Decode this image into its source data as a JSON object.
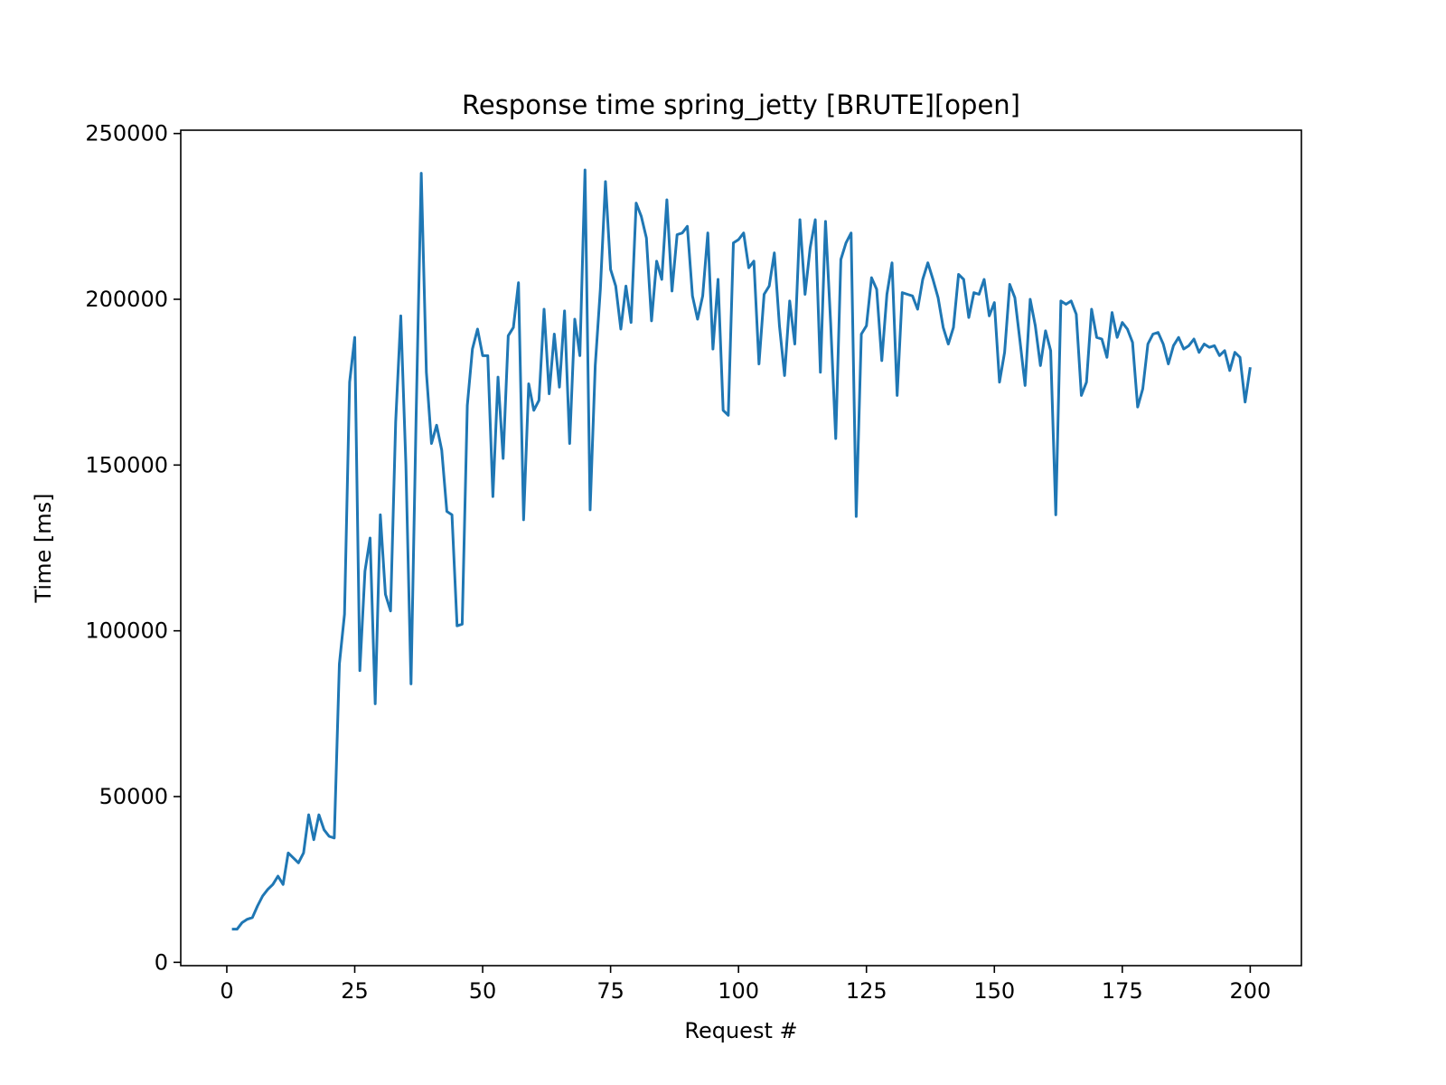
{
  "chart_data": {
    "type": "line",
    "title": "Response time spring_jetty [BRUTE][open]",
    "xlabel": "Request #",
    "ylabel": "Time [ms]",
    "xlim": [
      -9,
      210
    ],
    "ylim": [
      -1000,
      251000
    ],
    "xticks": [
      0,
      25,
      50,
      75,
      100,
      125,
      150,
      175,
      200
    ],
    "yticks": [
      0,
      50000,
      100000,
      150000,
      200000,
      250000
    ],
    "grid": false,
    "legend": false,
    "series": [
      {
        "color": "#1f77b4",
        "x": [
          1,
          2,
          3,
          4,
          5,
          6,
          7,
          8,
          9,
          10,
          11,
          12,
          13,
          14,
          15,
          16,
          17,
          18,
          19,
          20,
          21,
          22,
          23,
          24,
          25,
          26,
          27,
          28,
          29,
          30,
          31,
          32,
          33,
          34,
          35,
          36,
          37,
          38,
          39,
          40,
          41,
          42,
          43,
          44,
          45,
          46,
          47,
          48,
          49,
          50,
          51,
          52,
          53,
          54,
          55,
          56,
          57,
          58,
          59,
          60,
          61,
          62,
          63,
          64,
          65,
          66,
          67,
          68,
          69,
          70,
          71,
          72,
          73,
          74,
          75,
          76,
          77,
          78,
          79,
          80,
          81,
          82,
          83,
          84,
          85,
          86,
          87,
          88,
          89,
          90,
          91,
          92,
          93,
          94,
          95,
          96,
          97,
          98,
          99,
          100,
          101,
          102,
          103,
          104,
          105,
          106,
          107,
          108,
          109,
          110,
          111,
          112,
          113,
          114,
          115,
          116,
          117,
          118,
          119,
          120,
          121,
          122,
          123,
          124,
          125,
          126,
          127,
          128,
          129,
          130,
          131,
          132,
          133,
          134,
          135,
          136,
          137,
          138,
          139,
          140,
          141,
          142,
          143,
          144,
          145,
          146,
          147,
          148,
          149,
          150,
          151,
          152,
          153,
          154,
          155,
          156,
          157,
          158,
          159,
          160,
          161,
          162,
          163,
          164,
          165,
          166,
          167,
          168,
          169,
          170,
          171,
          172,
          173,
          174,
          175,
          176,
          177,
          178,
          179,
          180,
          181,
          182,
          183,
          184,
          185,
          186,
          187,
          188,
          189,
          190,
          191,
          192,
          193,
          194,
          195,
          196,
          197,
          198,
          199,
          200
        ],
        "values": [
          10000,
          10000,
          12000,
          13000,
          13500,
          17000,
          20000,
          22000,
          23500,
          26000,
          23500,
          33000,
          31500,
          30000,
          33000,
          44500,
          37000,
          44500,
          40000,
          38000,
          37500,
          90000,
          105000,
          175000,
          188500,
          88000,
          118000,
          128000,
          78000,
          135000,
          111000,
          106000,
          163000,
          195000,
          150000,
          84000,
          165000,
          238000,
          178000,
          156500,
          162000,
          154500,
          136000,
          135000,
          101500,
          102000,
          168000,
          185000,
          191000,
          183000,
          183000,
          140500,
          176500,
          152000,
          189000,
          191500,
          205000,
          133500,
          174500,
          166500,
          169500,
          197000,
          171500,
          189500,
          173500,
          196500,
          156500,
          194000,
          183000,
          239000,
          136500,
          180000,
          203000,
          235500,
          209000,
          204000,
          191000,
          204000,
          193000,
          229000,
          225000,
          218500,
          193500,
          211500,
          206000,
          230000,
          202500,
          219500,
          220000,
          222000,
          201000,
          194000,
          201000,
          220000,
          185000,
          206000,
          166500,
          165000,
          217000,
          218000,
          220000,
          209500,
          211500,
          180500,
          201500,
          204000,
          214000,
          192000,
          177000,
          199500,
          186500,
          224000,
          201500,
          215500,
          224000,
          178000,
          223500,
          193000,
          158000,
          212000,
          217000,
          220000,
          134500,
          189500,
          192000,
          206500,
          203000,
          181500,
          201500,
          211000,
          171000,
          202000,
          201500,
          201000,
          197000,
          206000,
          211000,
          206000,
          200500,
          191500,
          186500,
          191500,
          207500,
          206000,
          194500,
          202000,
          201500,
          206000,
          195000,
          199000,
          175000,
          184000,
          204500,
          200500,
          187500,
          174000,
          200000,
          192000,
          180000,
          190500,
          184500,
          135000,
          199500,
          198500,
          199500,
          195500,
          171000,
          175000,
          197000,
          188500,
          188000,
          182500,
          196000,
          188500,
          193000,
          191000,
          187000,
          167500,
          173000,
          186500,
          189500,
          190000,
          186500,
          180500,
          186000,
          188500,
          185000,
          186000,
          188000,
          184000,
          186500,
          185500,
          186000,
          183000,
          184500,
          178500,
          184000,
          182500,
          169000,
          179500
        ]
      }
    ]
  }
}
